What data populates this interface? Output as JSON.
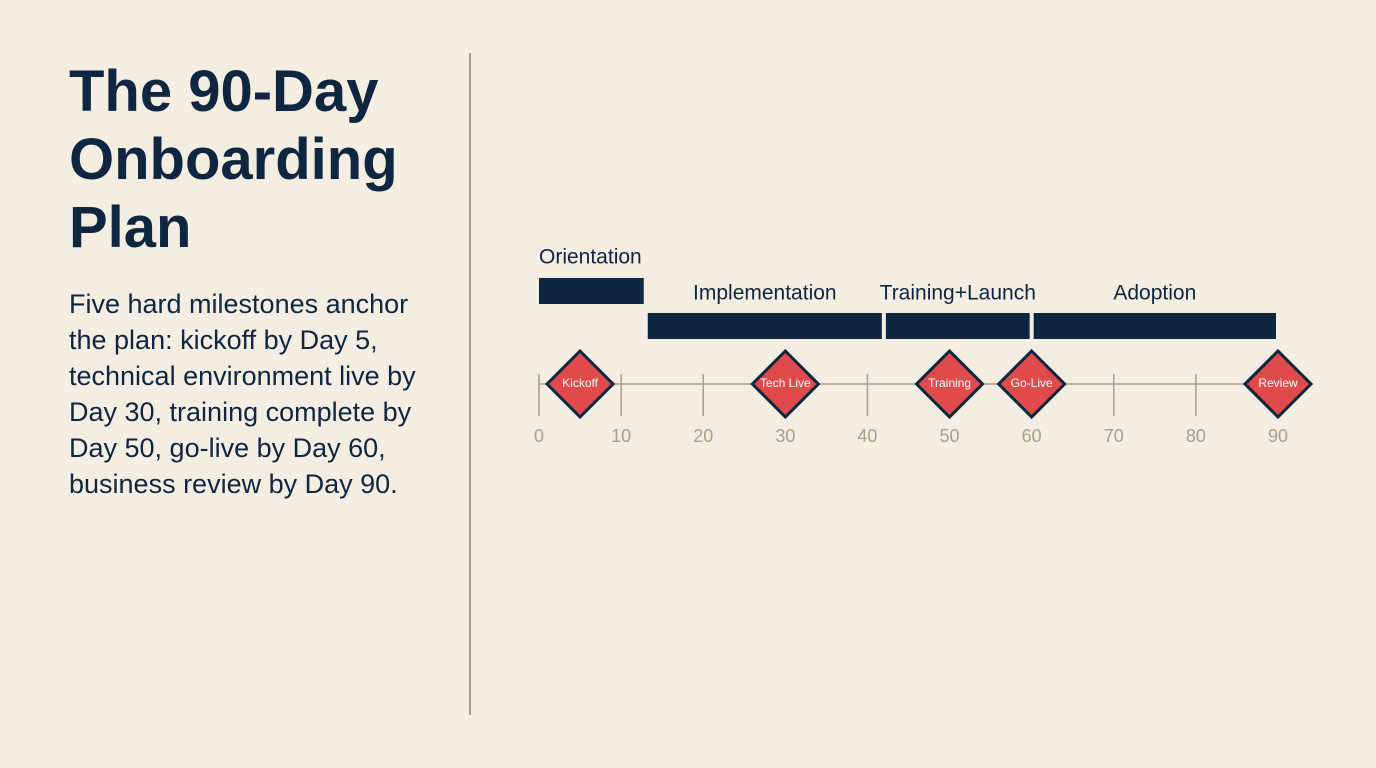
{
  "chart_data": {
    "type": "timeline",
    "title": "The 90-Day Onboarding Plan",
    "subtitle": "Five hard milestones anchor the plan: kickoff by Day 5, technical environment live by Day 30, training complete by Day 50, go-live by Day 60, business review by Day 90.",
    "phases": [
      {
        "name": "Orientation",
        "start": 0,
        "end": 13
      },
      {
        "name": "Implementation",
        "start": 13,
        "end": 42
      },
      {
        "name": "Training+Launch",
        "start": 42,
        "end": 60
      },
      {
        "name": "Adoption",
        "start": 60,
        "end": 90
      }
    ],
    "milestones": [
      {
        "name": "Kickoff",
        "day": 5
      },
      {
        "name": "Tech Live",
        "day": 30
      },
      {
        "name": "Training",
        "day": 50
      },
      {
        "name": "Go-Live",
        "day": 60
      },
      {
        "name": "Review",
        "day": 90
      }
    ],
    "xlim": [
      0,
      90
    ],
    "xticks": [
      0,
      10,
      20,
      30,
      40,
      50,
      60,
      70,
      80,
      90
    ],
    "phase_color": "#0f2640",
    "milestone_color": "#e04a4a",
    "axis_color": "#a89f87"
  }
}
